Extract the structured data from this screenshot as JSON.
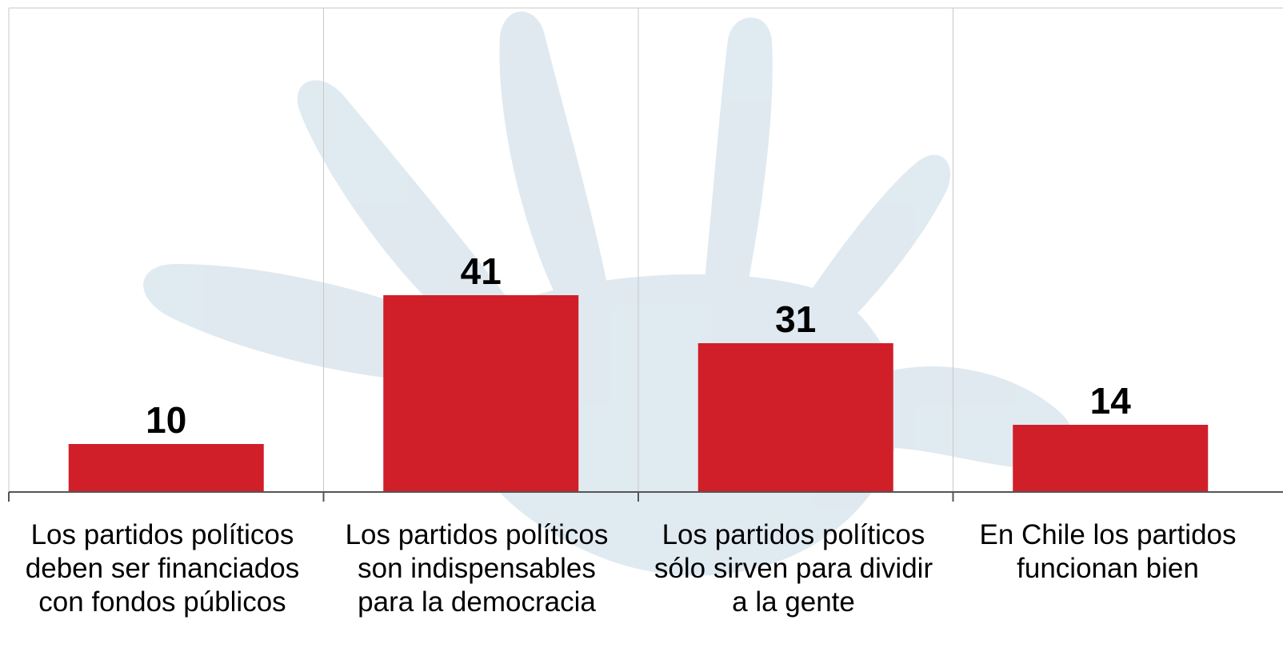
{
  "chart_data": {
    "type": "bar",
    "title": "",
    "xlabel": "",
    "ylabel": "",
    "ylim": [
      0,
      100
    ],
    "grid": "vertical-category-separators",
    "legend": "none",
    "categories": [
      "Los partidos políticos\ndeben ser financiados\ncon fondos públicos",
      "Los partidos políticos\nson indispensables\npara la democracia",
      "Los partidos políticos\nsólo sirven para dividir\na la gente",
      "En Chile los partidos\nfuncionan bien"
    ],
    "values": [
      10,
      41,
      31,
      14
    ],
    "data_labels": [
      "10",
      "41",
      "31",
      "14"
    ]
  },
  "colors": {
    "bar": "#d01f29",
    "grid": "#c8c8c8",
    "axis": "#555555",
    "text": "#000000",
    "watermark": "#dbe6ee"
  },
  "watermark": {
    "icon": "handprint-icon"
  }
}
